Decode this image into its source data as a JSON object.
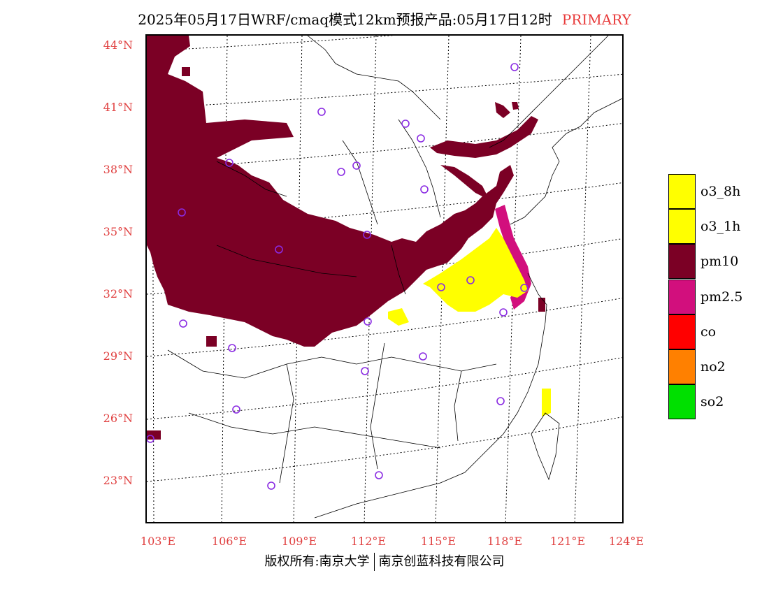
{
  "header": {
    "title": "2025年05月17日WRF/cmaq模式12km预报产品:05月17日12时",
    "tag": "PRIMARY",
    "tag_color": "#e83a3a"
  },
  "axes": {
    "lat_labels": [
      "44°N",
      "41°N",
      "38°N",
      "35°N",
      "32°N",
      "29°N",
      "26°N",
      "23°N"
    ],
    "lon_labels": [
      "103°E",
      "106°E",
      "109°E",
      "112°E",
      "115°E",
      "118°E",
      "121°E",
      "124°E"
    ],
    "label_color": "#e04040"
  },
  "legend": [
    {
      "label": "o3_8h",
      "color": "#ffff00"
    },
    {
      "label": "o3_1h",
      "color": "#ffff00"
    },
    {
      "label": "pm10",
      "color": "#7b0025"
    },
    {
      "label": "pm2.5",
      "color": "#d20f7d"
    },
    {
      "label": "co",
      "color": "#ff0000"
    },
    {
      "label": "no2",
      "color": "#ff8000"
    },
    {
      "label": "so2",
      "color": "#00e000"
    }
  ],
  "footer": {
    "left": "版权所有:南京大学",
    "right": "南京创蓝科技有限公司"
  }
}
